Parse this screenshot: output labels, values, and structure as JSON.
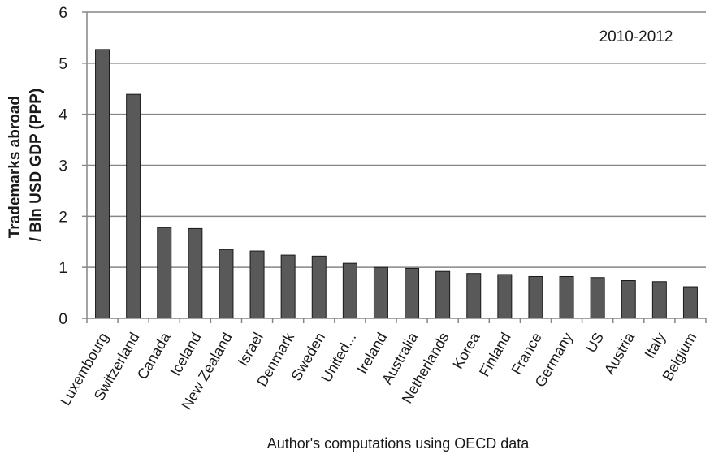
{
  "chart_data": {
    "type": "bar",
    "title": "",
    "annotation": "2010-2012",
    "ylabel": "Trademarks abroad / Bln USD GDP (PPP)",
    "ylabel_lines": [
      "Trademarks abroad",
      "/ Bln USD GDP (PPP)"
    ],
    "xlabel": "Author's computations using OECD data",
    "ylim": [
      0,
      6
    ],
    "yticks": [
      0,
      1,
      2,
      3,
      4,
      5,
      6
    ],
    "grid": "horizontal",
    "legend": "none",
    "colors": {
      "bar_fill": "#595959",
      "bar_stroke": "#1a1a1a",
      "grid": "#868686",
      "axis": "#868686"
    },
    "categories": [
      "Luxembourg",
      "Switzerland",
      "Canada",
      "Iceland",
      "New Zealand",
      "Israel",
      "Denmark",
      "Sweden",
      "United...",
      "Ireland",
      "Australia",
      "Netherlands",
      "Korea",
      "Finland",
      "France",
      "Germany",
      "US",
      "Austria",
      "Italy",
      "Belgium"
    ],
    "values": [
      5.27,
      4.39,
      1.78,
      1.76,
      1.35,
      1.32,
      1.24,
      1.22,
      1.08,
      1.0,
      0.98,
      0.92,
      0.88,
      0.86,
      0.82,
      0.82,
      0.8,
      0.74,
      0.72,
      0.62
    ]
  }
}
